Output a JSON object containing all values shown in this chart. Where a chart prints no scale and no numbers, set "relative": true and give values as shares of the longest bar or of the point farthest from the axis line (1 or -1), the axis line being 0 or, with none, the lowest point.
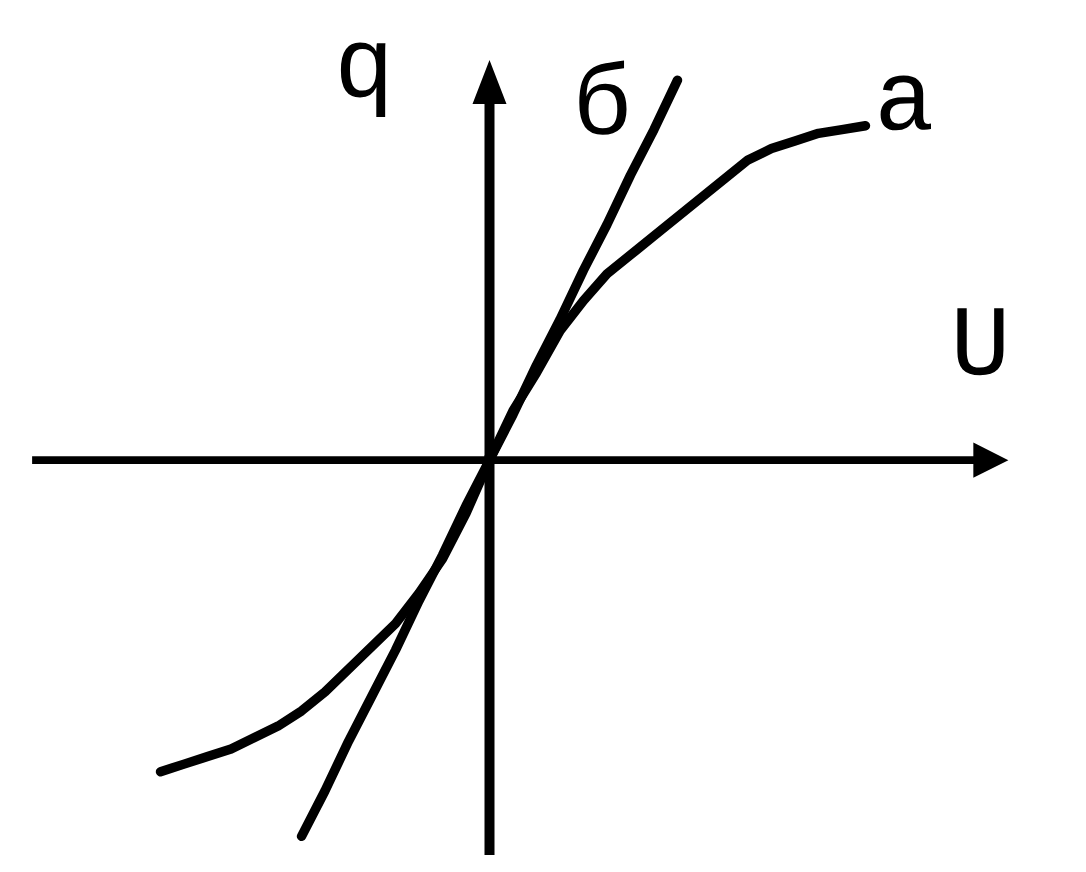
{
  "chart_data": {
    "type": "line",
    "xlabel": "U",
    "ylabel": "q",
    "relative": true,
    "categories": [
      null,
      null,
      null,
      null,
      null,
      null,
      null,
      null,
      null,
      null,
      null,
      null,
      null,
      null,
      null,
      null,
      null,
      null,
      null,
      null,
      null,
      null,
      null,
      null,
      null,
      null,
      null,
      null,
      null,
      null,
      null
    ],
    "series": [
      {
        "name": "а",
        "color": "#000000",
        "values": [
          -0.82,
          -0.8,
          -0.78,
          -0.76,
          -0.73,
          -0.7,
          -0.66,
          -0.61,
          -0.55,
          -0.49,
          -0.43,
          -0.35,
          -0.26,
          -0.14,
          0,
          0.13,
          0.23,
          0.34,
          0.42,
          0.49,
          0.54,
          0.59,
          0.64,
          0.69,
          0.74,
          0.79,
          0.82,
          0.84,
          0.86,
          0.87,
          0.88
        ]
      },
      {
        "name": "б",
        "color": "#000000",
        "values": [
          null,
          null,
          null,
          null,
          null,
          null,
          -0.99,
          -0.87,
          -0.74,
          -0.62,
          -0.5,
          -0.37,
          -0.25,
          -0.12,
          0,
          0.12,
          0.25,
          0.37,
          0.5,
          0.62,
          0.75,
          0.87,
          1.0,
          null,
          null,
          null,
          null,
          null,
          null,
          null,
          null
        ]
      }
    ]
  }
}
